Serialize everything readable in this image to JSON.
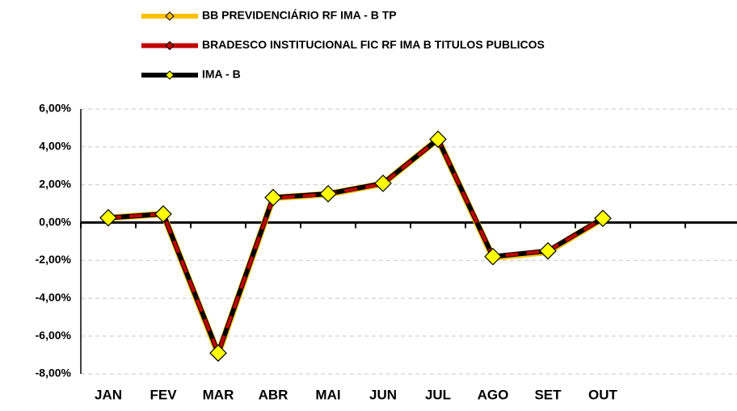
{
  "chart_data": {
    "type": "line",
    "categories": [
      "JAN",
      "FEV",
      "MAR",
      "ABR",
      "MAI",
      "JUN",
      "JUL",
      "AGO",
      "SET",
      "OUT",
      null,
      null
    ],
    "series": [
      {
        "name": "BB PREVIDENCIÁRIO RF IMA - B TP",
        "color": "#ffc000",
        "values": [
          0.25,
          0.45,
          -6.95,
          1.3,
          1.5,
          2.05,
          4.4,
          -1.85,
          -1.55,
          0.2,
          null,
          null
        ]
      },
      {
        "name": "BRADESCO INSTITUCIONAL FIC RF IMA B TITULOS PUBLICOS",
        "color": "#c00000",
        "values": [
          0.25,
          0.45,
          -6.9,
          1.3,
          1.5,
          2.05,
          4.4,
          -1.8,
          -1.5,
          0.2,
          null,
          null
        ]
      },
      {
        "name": "IMA - B",
        "color": "#000000",
        "values": [
          0.25,
          0.45,
          -6.9,
          1.32,
          1.52,
          2.07,
          4.4,
          -1.8,
          -1.5,
          0.22,
          null,
          null
        ]
      }
    ],
    "ylim": [
      -8,
      6
    ],
    "yticks": [
      {
        "value": -8,
        "label": "-8,00%"
      },
      {
        "value": -6,
        "label": "-6,00%"
      },
      {
        "value": -4,
        "label": "-4,00%"
      },
      {
        "value": -2,
        "label": "-2,00%"
      },
      {
        "value": 0,
        "label": "0,00%"
      },
      {
        "value": 2,
        "label": "2,00%"
      },
      {
        "value": 4,
        "label": "4,00%"
      },
      {
        "value": 6,
        "label": "6,00%"
      }
    ],
    "grid": true,
    "legend": "top",
    "marker_color": "#ffff00"
  }
}
